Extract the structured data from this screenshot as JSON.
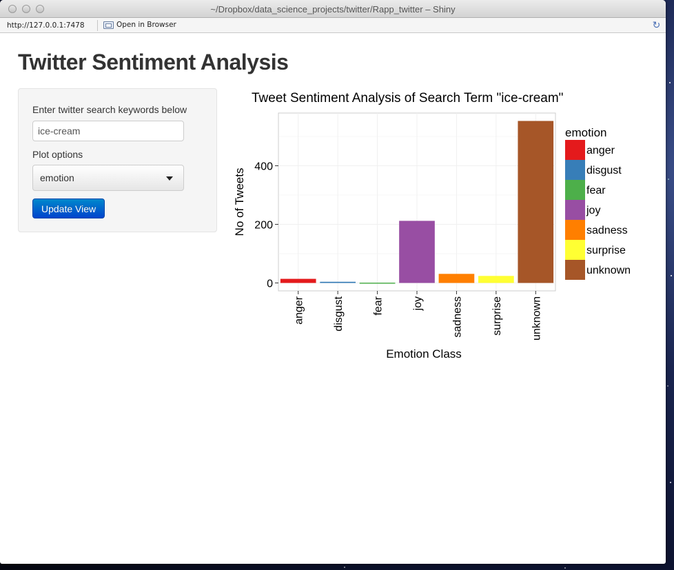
{
  "window": {
    "title": "~/Dropbox/data_science_projects/twitter/Rapp_twitter – Shiny",
    "url": "http://127.0.0.1:7478",
    "open_in_browser_label": "Open in Browser"
  },
  "page": {
    "title": "Twitter Sentiment Analysis"
  },
  "sidebar": {
    "search_label": "Enter twitter search keywords below",
    "search_value": "ice-cream",
    "plot_options_label": "Plot options",
    "plot_option_selected": "emotion",
    "update_button_label": "Update View"
  },
  "colors": {
    "accent_button": "#0066cc",
    "panel_background": "#f5f5f5"
  },
  "chart_data": {
    "type": "bar",
    "title": "Tweet Sentiment Analysis of Search Term \"ice-cream\"",
    "xlabel": "Emotion Class",
    "ylabel": "No of Tweets",
    "categories": [
      "anger",
      "disgust",
      "fear",
      "joy",
      "sadness",
      "surprise",
      "unknown"
    ],
    "values": [
      14,
      4,
      1,
      212,
      31,
      24,
      553
    ],
    "colors": [
      "#E41A1C",
      "#377EB8",
      "#4DAF4A",
      "#984EA3",
      "#FF7F00",
      "#FFFF33",
      "#A65628"
    ],
    "yticks": [
      0,
      200,
      400
    ],
    "ylim": [
      -27,
      580
    ],
    "grid": true,
    "legend": {
      "title": "emotion",
      "position": "right",
      "entries": [
        "anger",
        "disgust",
        "fear",
        "joy",
        "sadness",
        "surprise",
        "unknown"
      ]
    }
  }
}
